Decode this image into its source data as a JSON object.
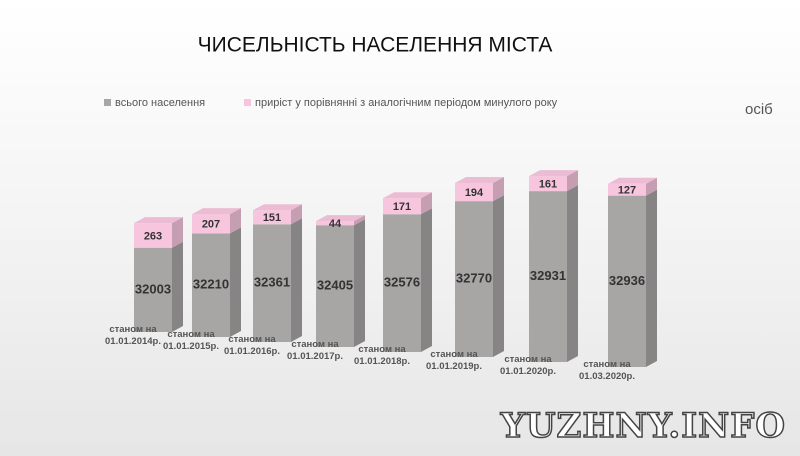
{
  "chart_data": {
    "type": "bar3d_stacked",
    "title": "ЧИСЕЛЬНІСТЬ НАСЕЛЕННЯ МІСТА",
    "unit_label": "осіб",
    "watermark": "YUZHNY.INFO",
    "categories": [
      "станом на 01.01.2014р.",
      "станом на 01.01.2015р.",
      "станом на 01.01.2016р.",
      "станом на 01.01.2017р.",
      "станом на 01.01.2018р.",
      "станом на 01.01.2019р.",
      "станом на 01.01.2020р.",
      "станом на 01.03.2020р."
    ],
    "series": [
      {
        "name": "всього населення",
        "color": "#a8a5a5",
        "values": [
          32003,
          32210,
          32361,
          32405,
          32576,
          32770,
          32931,
          32936
        ]
      },
      {
        "name": "приріст у порівнянні з аналогічним періодом минулого року",
        "color": "#f7c6de",
        "values": [
          263,
          207,
          151,
          44,
          171,
          194,
          161,
          127
        ]
      }
    ],
    "ylim": [
      31100,
      33200
    ]
  }
}
